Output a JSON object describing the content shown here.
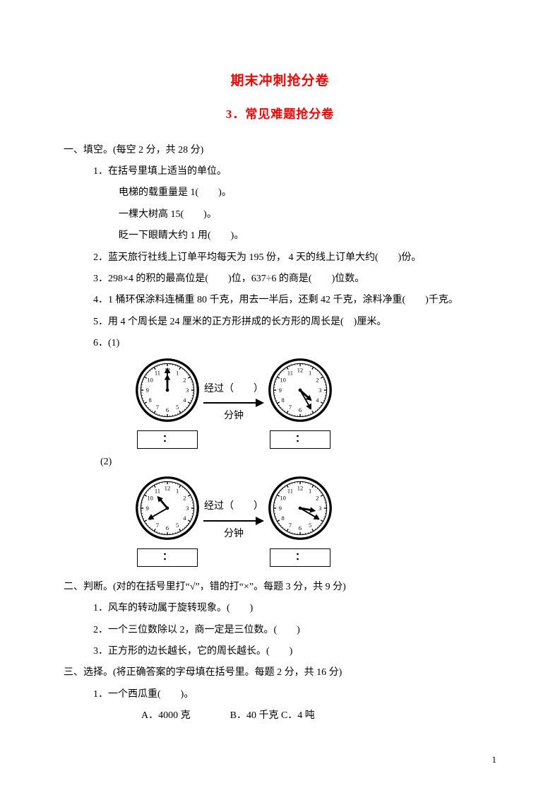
{
  "title_main": "期末冲刺抢分卷",
  "title_sub": "3．常见难题抢分卷",
  "s1": {
    "head": "一、填空。(每空 2 分，共 28 分)",
    "q1": "1．在括号里填上适当的单位。",
    "q1a": "电梯的载重量是 1(　　)。",
    "q1b": "一棵大树高 15(　　)。",
    "q1c": "眨一下眼睛大约 1 用(　　)。",
    "q2": "2．蓝天旅行社线上订单平均每天为 195 份，  4 天的线上订单大约(　　)份。",
    "q3": "3．298×4 的积的最高位是(　　)位，637÷6 的商是(　　)位数。",
    "q4": "4．1 桶环保涂料连桶重 80 千克，用去一半后，还剩 42 千克，涂料净重(　　)千克。",
    "q5": "5．用 4 个周长是 24 厘米的正方形拼成的长方形的周长是(　)厘米。",
    "q6": "6．(1)",
    "q6b": "(2)",
    "mid1": "经过（　　）",
    "mid2": "分钟",
    "colon": "："
  },
  "s2": {
    "head": "二、判断。(对的在括号里打“√”，错的打“×”。每题 3 分，共 9 分)",
    "q1": "1．风车的转动属于旋转现象。(　　)",
    "q2": "2．一个三位数除以 2，商一定是三位数。(　　)",
    "q3": "3．正方形的边长越长，它的周长越长。(　　)"
  },
  "s3": {
    "head": "三、选择。(将正确答案的字母填在括号里。每题 2 分，共 16 分)",
    "q1": "1．一个西瓜重(　　)。",
    "q1opts": "A．4000 克　　　　B．40 千克 C．4 吨"
  },
  "pagenum": "1",
  "clocks": {
    "set1": {
      "h1": 12,
      "m1": 0,
      "h2": 4,
      "m2": 25
    },
    "set2": {
      "h1": 10,
      "m1": 40,
      "h2": 3,
      "m2": 20
    },
    "face_stroke": "#000000",
    "face_fill": "#ffffff"
  }
}
